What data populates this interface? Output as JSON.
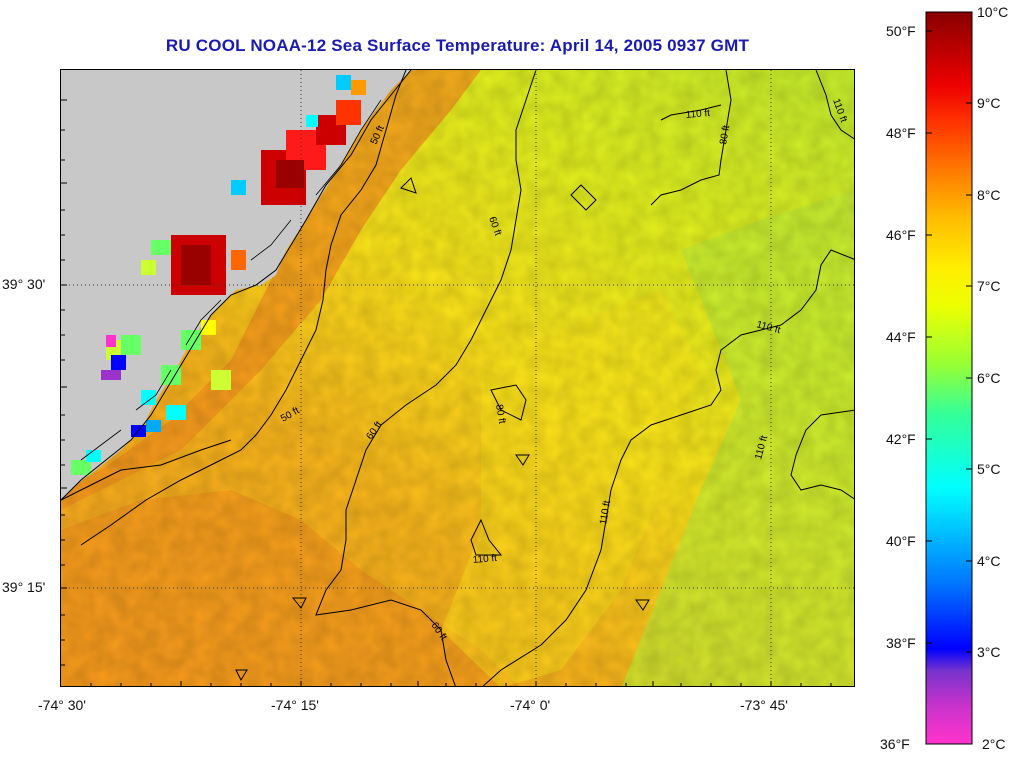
{
  "title": "RU COOL  NOAA-12  Sea Surface Temperature:  April 14, 2005 0937 GMT",
  "map": {
    "lon_ticks": [
      "-74° 30'",
      "-74° 15'",
      "-74° 0'",
      "-73° 45'"
    ],
    "lat_ticks": [
      "39° 30'",
      "39° 15'"
    ],
    "land_color": "#c8c8c8",
    "contour_color": "#000000",
    "contour_labels": [
      {
        "text": "50 ft"
      },
      {
        "text": "50 ft"
      },
      {
        "text": "60 ft"
      },
      {
        "text": "60 ft"
      },
      {
        "text": "60 ft"
      },
      {
        "text": "80 ft"
      },
      {
        "text": "80 ft"
      },
      {
        "text": "110 ft"
      },
      {
        "text": "110 ft"
      },
      {
        "text": "110 ft"
      },
      {
        "text": "110 ft"
      },
      {
        "text": "110 ft"
      },
      {
        "text": "110 ft"
      }
    ]
  },
  "colorbar": {
    "fahrenheit_labels": [
      "50°F",
      "48°F",
      "46°F",
      "44°F",
      "42°F",
      "40°F",
      "38°F",
      "36°F"
    ],
    "celsius_labels": [
      "10°C",
      "9°C",
      "8°C",
      "7°C",
      "6°C",
      "5°C",
      "4°C",
      "3°C",
      "2°C"
    ],
    "range_c": [
      2,
      10
    ],
    "palette": [
      "#ff33cc",
      "#9933cc",
      "#0000ff",
      "#00aaff",
      "#00ffff",
      "#66ff66",
      "#ccff33",
      "#ffff00",
      "#ffcc00",
      "#ff9900",
      "#ff3300",
      "#ff0000",
      "#990000"
    ]
  }
}
